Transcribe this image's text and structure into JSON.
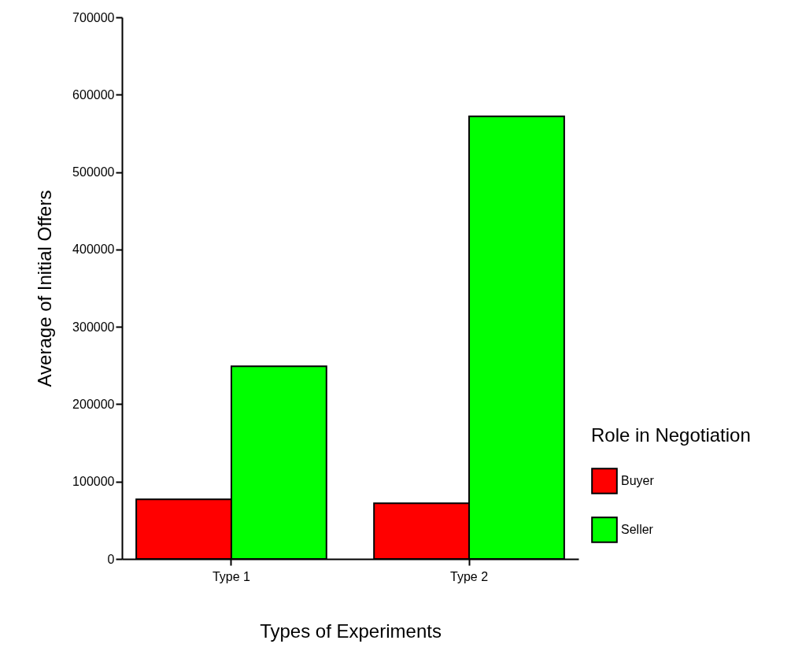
{
  "chart_data": {
    "type": "bar",
    "xlabel": "Types of Experiments",
    "ylabel": "Average of Initial Offers",
    "legend_title": "Role in Negotiation",
    "categories": [
      "Type 1",
      "Type 2"
    ],
    "series": [
      {
        "name": "Buyer",
        "color": "#ff0000",
        "values": [
          77000,
          72000
        ]
      },
      {
        "name": "Seller",
        "color": "#00ff00",
        "values": [
          249000,
          572000
        ]
      }
    ],
    "ylim": [
      0,
      700000
    ],
    "yticks": [
      0,
      100000,
      200000,
      300000,
      400000,
      500000,
      600000,
      700000
    ],
    "grid": false,
    "legend": "right"
  }
}
